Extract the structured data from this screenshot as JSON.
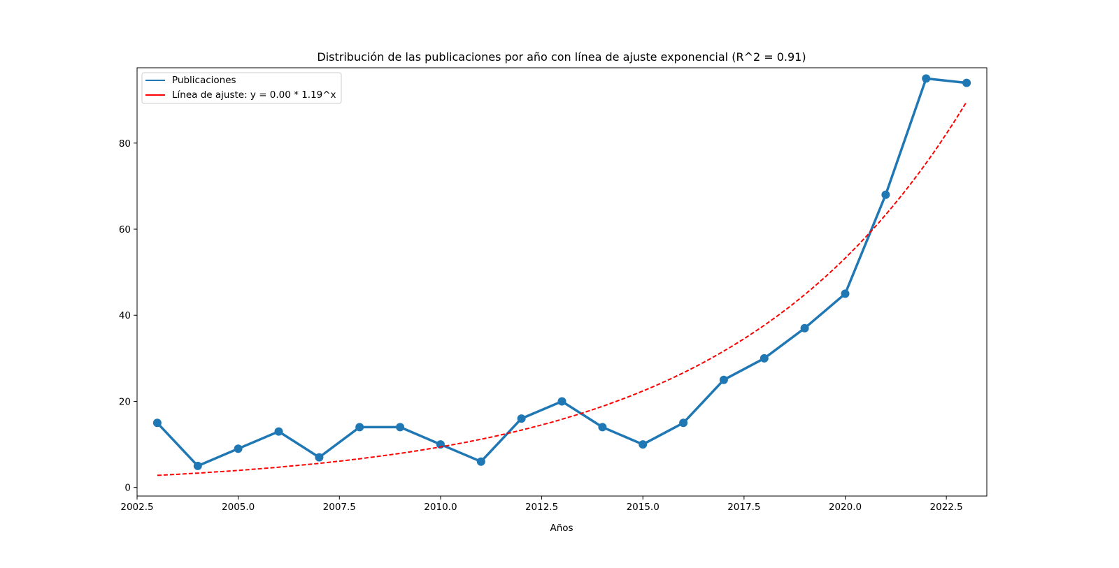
{
  "chart_data": {
    "type": "line",
    "title": "Distribución de las publicaciones por año con línea de ajuste exponencial (R^2 = 0.91)",
    "xlabel": "Años",
    "ylabel": "",
    "xlim": [
      2002.5,
      2023.5
    ],
    "ylim": [
      -2,
      97.5
    ],
    "xticks": [
      2002.5,
      2005.0,
      2007.5,
      2010.0,
      2012.5,
      2015.0,
      2017.5,
      2020.0,
      2022.5
    ],
    "xtick_labels": [
      "2002.5",
      "2005.0",
      "2007.5",
      "2010.0",
      "2012.5",
      "2015.0",
      "2017.5",
      "2020.0",
      "2022.5"
    ],
    "yticks": [
      0,
      20,
      40,
      60,
      80
    ],
    "ytick_labels": [
      "0",
      "20",
      "40",
      "60",
      "80"
    ],
    "grid": false,
    "legend_position": "top-left",
    "series": [
      {
        "name": "Publicaciones",
        "style": "solid-with-markers",
        "color": "#1f77b4",
        "x": [
          2003,
          2004,
          2005,
          2006,
          2007,
          2008,
          2009,
          2010,
          2011,
          2012,
          2013,
          2014,
          2015,
          2016,
          2017,
          2018,
          2019,
          2020,
          2021,
          2022,
          2023
        ],
        "y": [
          15,
          5,
          9,
          13,
          7,
          14,
          14,
          10,
          6,
          16,
          20,
          14,
          10,
          15,
          25,
          30,
          37,
          45,
          68,
          95,
          94
        ]
      },
      {
        "name": "Línea de ajuste: y = 0.00 * 1.19^x",
        "style": "dashed",
        "color": "#ff0000",
        "x": [
          2003,
          2004,
          2005,
          2006,
          2007,
          2008,
          2009,
          2010,
          2011,
          2012,
          2013,
          2014,
          2015,
          2016,
          2017,
          2018,
          2019,
          2020,
          2021,
          2022,
          2023
        ],
        "y": [
          2.8,
          3.3,
          3.9,
          4.6,
          5.5,
          6.6,
          7.8,
          9.3,
          11.1,
          13.2,
          15.7,
          18.7,
          22.3,
          26.5,
          31.5,
          37.5,
          44.7,
          53.1,
          63.2,
          75.3,
          89.6
        ]
      }
    ]
  }
}
